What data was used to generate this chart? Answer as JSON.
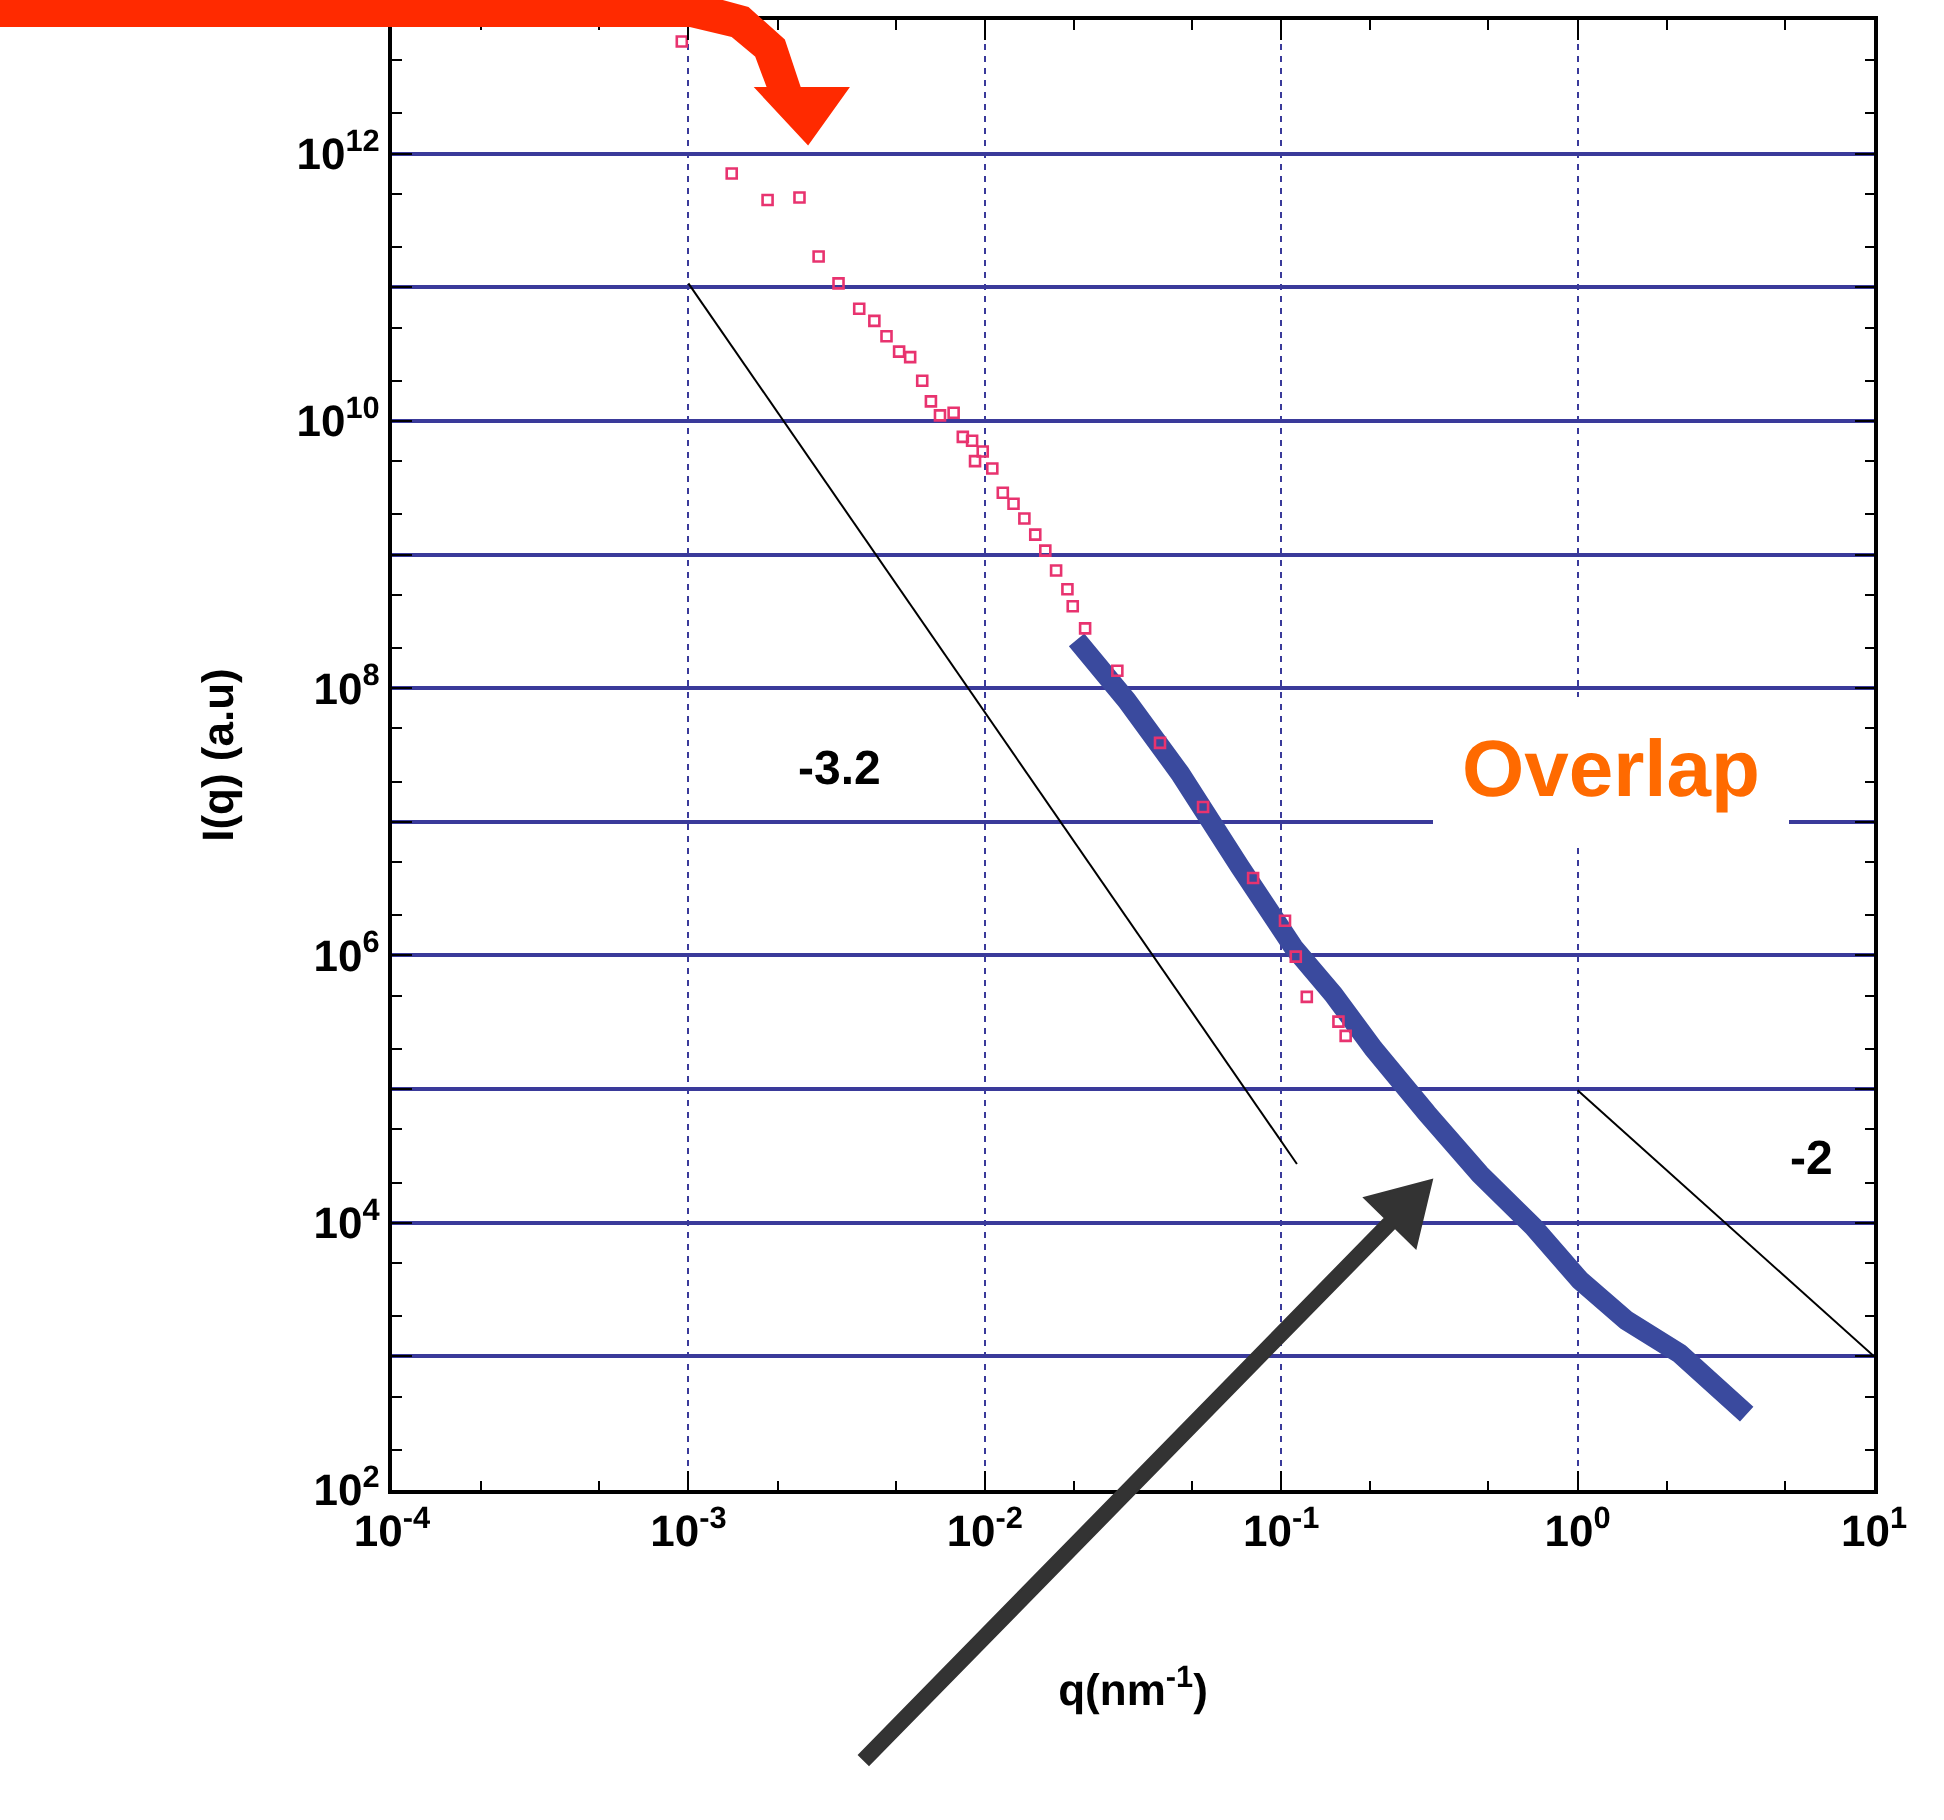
{
  "chart_data": {
    "type": "scatter",
    "xlabel": "q(nm$^{-1}$)",
    "ylabel": "I(q) (a.u)",
    "log": "xy",
    "grid": true,
    "legend": false,
    "xlim": [
      0.0001,
      10
    ],
    "ylim": [
      100,
      10000000000000.0
    ],
    "xticks": [
      {
        "value": 0.0001,
        "label": "10$^{-4}$"
      },
      {
        "value": 0.001,
        "label": "10$^{-3}$"
      },
      {
        "value": 0.01,
        "label": "10$^{-2}$"
      },
      {
        "value": 0.1,
        "label": "10$^{-1}$"
      },
      {
        "value": 1,
        "label": "10$^{0}$"
      },
      {
        "value": 10,
        "label": "10$^{1}$"
      }
    ],
    "yticks": [
      {
        "value": 100,
        "label": "10$^{2}$"
      },
      {
        "value": 1000,
        "label": null
      },
      {
        "value": 10000,
        "label": "10$^{4}$"
      },
      {
        "value": 100000,
        "label": null
      },
      {
        "value": 1000000,
        "label": "10$^{6}$"
      },
      {
        "value": 10000000,
        "label": null
      },
      {
        "value": 100000000,
        "label": "10$^{8}$"
      },
      {
        "value": 1000000000,
        "label": null
      },
      {
        "value": 10000000000,
        "label": "10$^{10}$"
      },
      {
        "value": 100000000000,
        "label": null
      },
      {
        "value": 1000000000000,
        "label": "10$^{12}$"
      }
    ],
    "series": [
      {
        "marker": "square",
        "color": "#e8336f",
        "x": [
          0.00095,
          0.0014,
          0.00185,
          0.00237,
          0.00275,
          0.00321,
          0.00377,
          0.00424,
          0.00466,
          0.00514,
          0.0056,
          0.00615,
          0.00658,
          0.00706,
          0.00785,
          0.00843,
          0.00906,
          0.00927,
          0.00984,
          0.0106,
          0.0115,
          0.0125,
          0.0136,
          0.0148,
          0.016,
          0.0174,
          0.019,
          0.0198,
          0.0218,
          0.028,
          0.039,
          0.0545,
          0.0804,
          0.103,
          0.112,
          0.122,
          0.156,
          0.165
        ],
        "values": [
          6900000000000.0,
          710000000000.0,
          450000000000.0,
          470000000000.0,
          170000000000.0,
          107000000000.0,
          69000000000.0,
          56000000000.0,
          43000000000.0,
          33000000000.0,
          30000000000.0,
          20000000000.0,
          14000000000.0,
          11000000000.0,
          11500000000.0,
          7600000000.0,
          7100000000.0,
          5000000000.0,
          5900000000.0,
          4400000000.0,
          2900000000.0,
          2400000000.0,
          1860000000.0,
          1410000000.0,
          1070000000.0,
          760000000.0,
          550000000.0,
          410000000.0,
          280000000.0,
          135000000.0,
          39000000.0,
          12900000.0,
          3800000.0,
          1820000.0,
          980000.0,
          490000.0,
          320000.0,
          250000.0
        ]
      },
      {
        "type": "line",
        "line_style": "solid",
        "color": "#3a4a9e",
        "x": [
          0.0204,
          0.0301,
          0.0456,
          0.0726,
          0.11,
          0.15,
          0.205,
          0.31,
          0.469,
          0.71,
          1.02,
          1.46,
          2.21,
          3.72
        ],
        "values": [
          230000000.0,
          81000000.0,
          23000000.0,
          4600000.0,
          1150000.0,
          510000.0,
          200000.0,
          66000.0,
          23000.0,
          9300.0,
          3700.0,
          1860.0,
          1050.0,
          370
        ]
      },
      {
        "type": "line",
        "line_style": "solid",
        "color": "#000000",
        "x": [
          0.001,
          0.113
        ],
        "values": [
          107000000000.0,
          27500
        ]
      },
      {
        "type": "line",
        "line_style": "solid",
        "color": "#000000",
        "x": [
          1,
          10
        ],
        "values": [
          98000,
          1000
        ]
      }
    ],
    "annotations": [
      "-3.2",
      "-2",
      "Overlap"
    ]
  }
}
